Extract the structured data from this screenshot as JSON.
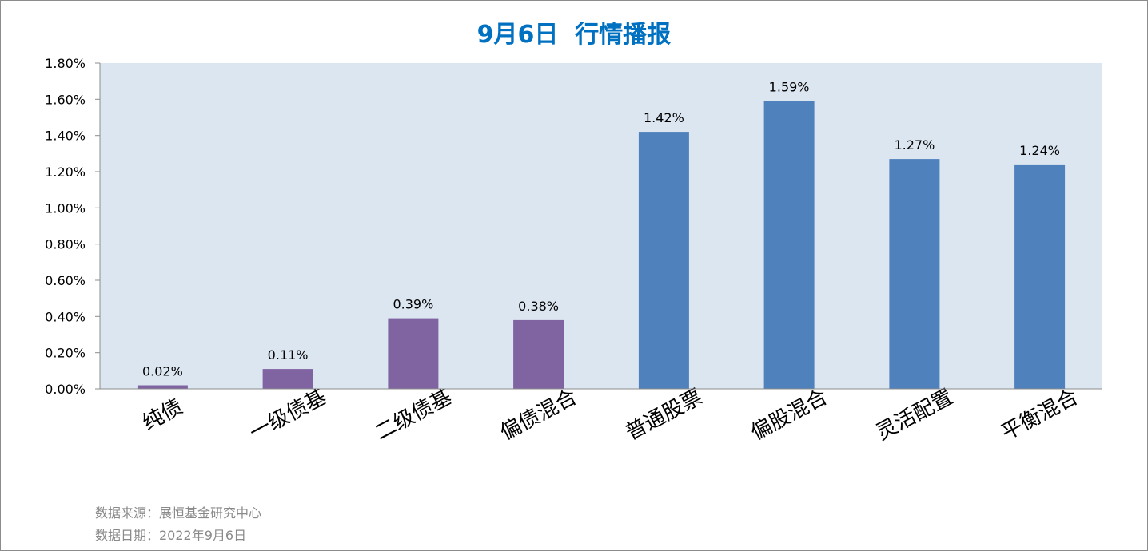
{
  "chart_data": {
    "type": "bar",
    "title": "9月6日  行情播报",
    "categories": [
      "纯债",
      "一级债基",
      "二级债基",
      "偏债混合",
      "普通股票",
      "偏股混合",
      "灵活配置",
      "平衡混合"
    ],
    "values": [
      0.02,
      0.11,
      0.39,
      0.38,
      1.42,
      1.59,
      1.27,
      1.24
    ],
    "value_unit": "%",
    "data_labels": [
      "0.02%",
      "0.11%",
      "0.39%",
      "0.38%",
      "1.42%",
      "1.59%",
      "1.27%",
      "1.24%"
    ],
    "bar_colors": [
      "#8064a2",
      "#8064a2",
      "#8064a2",
      "#8064a2",
      "#4f81bd",
      "#4f81bd",
      "#4f81bd",
      "#4f81bd"
    ],
    "ylim": [
      0,
      1.8
    ],
    "yticks": [
      0,
      0.2,
      0.4,
      0.6,
      0.8,
      1.0,
      1.2,
      1.4,
      1.6,
      1.8
    ],
    "ytick_labels": [
      "0.00%",
      "0.20%",
      "0.40%",
      "0.60%",
      "0.80%",
      "1.00%",
      "1.20%",
      "1.40%",
      "1.60%",
      "1.80%"
    ],
    "xlabel": "",
    "ylabel": "",
    "grid": false,
    "legend": "none",
    "plot_background": "#dce6f1",
    "title_color": "#0070c0"
  },
  "footer": {
    "source": "数据来源：展恒基金研究中心",
    "date": "数据日期：2022年9月6日"
  }
}
